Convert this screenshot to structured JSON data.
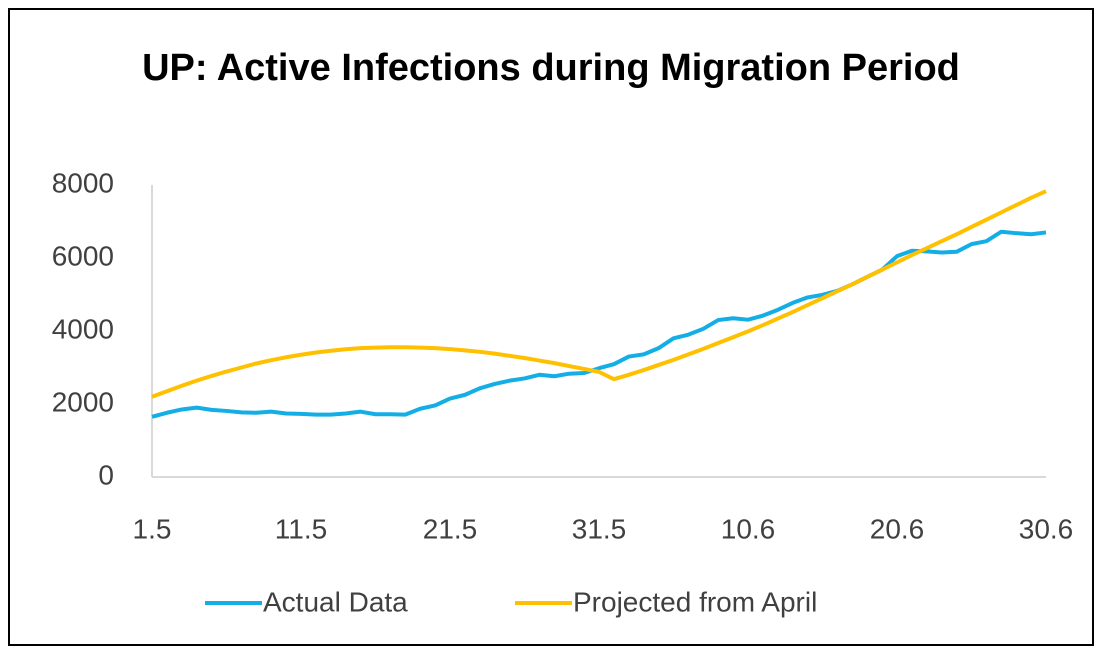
{
  "chart_data": {
    "type": "line",
    "title": "UP: Active Infections during Migration Period",
    "categories": [
      "1.5",
      null,
      null,
      null,
      null,
      null,
      null,
      null,
      null,
      null,
      "11.5",
      null,
      null,
      null,
      null,
      null,
      null,
      null,
      null,
      null,
      "21.5",
      null,
      null,
      null,
      null,
      null,
      null,
      null,
      null,
      null,
      "31.5",
      null,
      null,
      null,
      null,
      null,
      null,
      null,
      null,
      null,
      "10.6",
      null,
      null,
      null,
      null,
      null,
      null,
      null,
      null,
      null,
      "20.6",
      null,
      null,
      null,
      null,
      null,
      null,
      null,
      null,
      null,
      "30.6"
    ],
    "series": [
      {
        "name": "Actual Data",
        "color": "#13aee6",
        "values": [
          1650,
          1760,
          1850,
          1900,
          1840,
          1810,
          1770,
          1760,
          1790,
          1740,
          1730,
          1710,
          1710,
          1740,
          1790,
          1720,
          1720,
          1710,
          1870,
          1960,
          2150,
          2250,
          2430,
          2550,
          2640,
          2700,
          2800,
          2760,
          2830,
          2850,
          2980,
          3090,
          3300,
          3360,
          3530,
          3800,
          3900,
          4060,
          4300,
          4350,
          4310,
          4420,
          4580,
          4770,
          4920,
          4990,
          5100,
          5280,
          5480,
          5680,
          6050,
          6200,
          6180,
          6150,
          6170,
          6380,
          6460,
          6720,
          6680,
          6650,
          6700
        ]
      },
      {
        "name": "Projected from April",
        "color": "#ffc000",
        "values": [
          2200,
          2350,
          2500,
          2640,
          2770,
          2890,
          3000,
          3110,
          3200,
          3280,
          3350,
          3410,
          3460,
          3500,
          3530,
          3545,
          3555,
          3555,
          3545,
          3530,
          3505,
          3470,
          3430,
          3380,
          3320,
          3260,
          3190,
          3120,
          3040,
          2960,
          2880,
          2680,
          2800,
          2930,
          3070,
          3210,
          3360,
          3510,
          3670,
          3830,
          3990,
          4160,
          4340,
          4520,
          4710,
          4900,
          5090,
          5280,
          5480,
          5680,
          5880,
          6080,
          6270,
          6460,
          6650,
          6850,
          7050,
          7250,
          7450,
          7650,
          7830
        ]
      }
    ],
    "ylim": [
      0,
      8000
    ],
    "yticks": [
      0,
      2000,
      4000,
      6000,
      8000
    ],
    "grid": false,
    "legend": "bottom"
  }
}
